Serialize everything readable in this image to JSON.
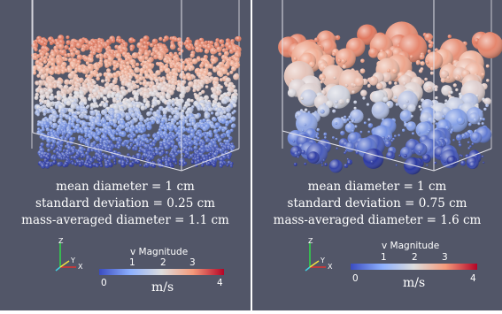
{
  "colors": {
    "background": "#525668",
    "colormap_low": "#3a4cc0",
    "colormap_mid": "#dddddd",
    "colormap_high": "#b40426"
  },
  "panels": [
    {
      "caption": {
        "line1": "mean diameter = 1 cm",
        "line2": "standard deviation = 0.25 cm",
        "line3": "mass-averaged diameter = 1.1 cm"
      },
      "legend": {
        "title": "v Magnitude",
        "ticks": [
          "1",
          "2",
          "3"
        ],
        "min": "0",
        "max": "4",
        "unit": "m/s"
      },
      "axes": {
        "z": "Z",
        "y": "Y",
        "x": "X"
      }
    },
    {
      "caption": {
        "line1": "mean diameter = 1 cm",
        "line2": "standard deviation = 0.75 cm",
        "line3": "mass-averaged diameter = 1.6 cm"
      },
      "legend": {
        "title": "v Magnitude",
        "ticks": [
          "1",
          "2",
          "3"
        ],
        "min": "0",
        "max": "4",
        "unit": "m/s"
      },
      "axes": {
        "z": "Z",
        "y": "Y",
        "x": "X"
      }
    }
  ]
}
